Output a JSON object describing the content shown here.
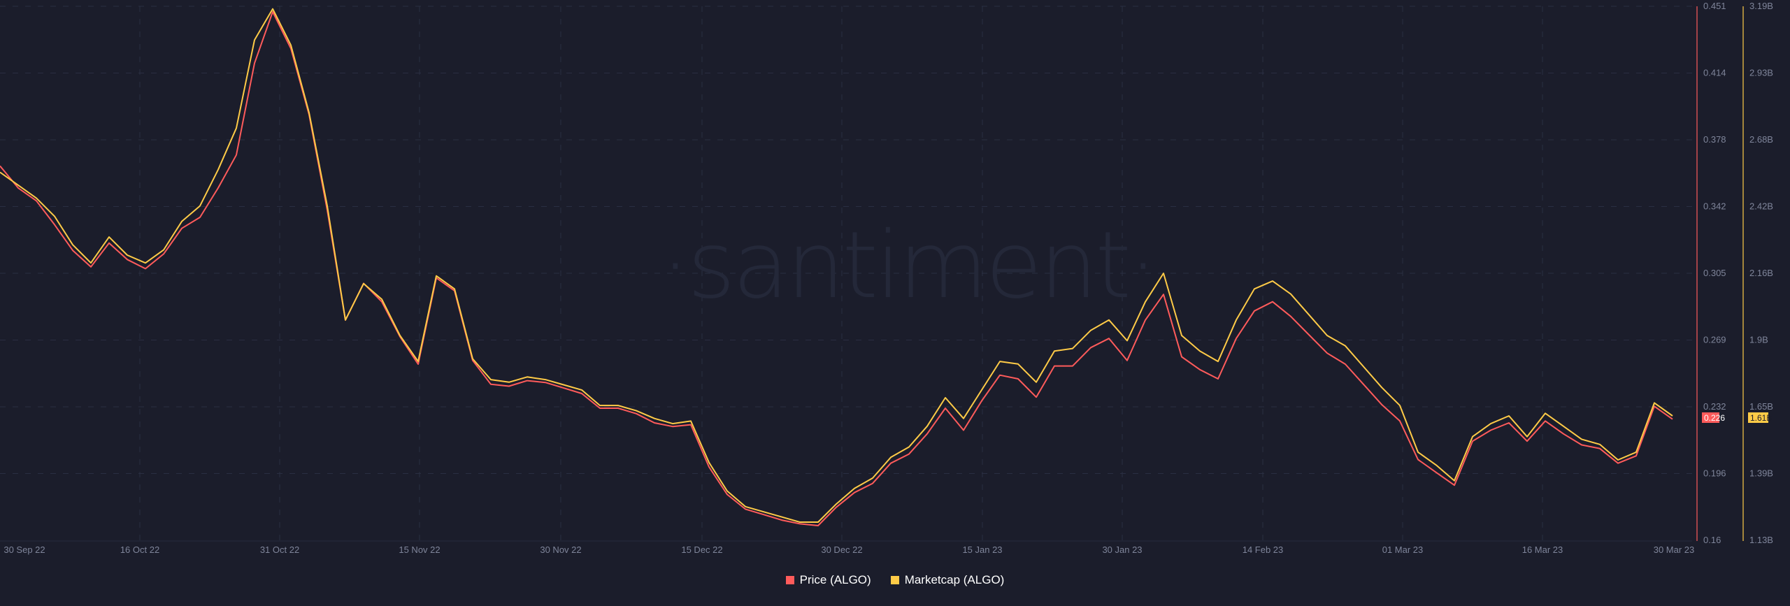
{
  "watermark": "·santiment·",
  "colors": {
    "background": "#1b1d2b",
    "grid": "#2a2e42",
    "price": "#ff5b5b",
    "marketcap": "#ffcb47",
    "axis_text": "#7f859a"
  },
  "legend": [
    {
      "label": "Price (ALGO)",
      "color": "#ff5b5b"
    },
    {
      "label": "Marketcap (ALGO)",
      "color": "#ffcb47"
    }
  ],
  "price_axis": {
    "ticks": [
      "0.451",
      "0.414",
      "0.378",
      "0.342",
      "0.305",
      "0.269",
      "0.232",
      "0.196",
      "0.16"
    ],
    "current_value": "0.226"
  },
  "marketcap_axis": {
    "ticks": [
      "3.19B",
      "2.93B",
      "2.68B",
      "2.42B",
      "2.16B",
      "1.9B",
      "1.65B",
      "1.39B",
      "1.13B"
    ],
    "current_value": "1.61B"
  },
  "x_axis": {
    "labels": [
      "30 Sep 22",
      "16 Oct 22",
      "31 Oct 22",
      "15 Nov 22",
      "30 Nov 22",
      "15 Dec 22",
      "30 Dec 22",
      "15 Jan 23",
      "30 Jan 23",
      "14 Feb 23",
      "01 Mar 23",
      "16 Mar 23",
      "30 Mar 23"
    ]
  },
  "chart_data": {
    "type": "line",
    "title": "",
    "xlabel": "",
    "ylabel": "",
    "x_range": [
      "30 Sep 22",
      "30 Mar 23"
    ],
    "grid": true,
    "legend_position": "bottom",
    "x": [
      "30 Sep 22",
      "16 Oct 22",
      "31 Oct 22",
      "15 Nov 22",
      "30 Nov 22",
      "15 Dec 22",
      "30 Dec 22",
      "15 Jan 23",
      "30 Jan 23",
      "14 Feb 23",
      "01 Mar 23",
      "16 Mar 23",
      "30 Mar 23"
    ],
    "y_left_label": "Price (ALGO)",
    "y_left_range": [
      0.16,
      0.451
    ],
    "y_right_label": "Marketcap (ALGO)",
    "y_right_range": [
      1.13,
      3.19
    ],
    "y_right_unit": "B",
    "series": [
      {
        "name": "Price (ALGO)",
        "axis": "left",
        "color": "#ff5b5b",
        "values": [
          0.364,
          0.352,
          0.345,
          0.332,
          0.318,
          0.309,
          0.322,
          0.313,
          0.308,
          0.316,
          0.33,
          0.336,
          0.352,
          0.37,
          0.42,
          0.448,
          0.428,
          0.392,
          0.34,
          0.28,
          0.3,
          0.29,
          0.271,
          0.256,
          0.303,
          0.296,
          0.258,
          0.245,
          0.244,
          0.247,
          0.246,
          0.243,
          0.24,
          0.232,
          0.232,
          0.229,
          0.224,
          0.222,
          0.223,
          0.2,
          0.185,
          0.177,
          0.174,
          0.171,
          0.169,
          0.168,
          0.178,
          0.186,
          0.191,
          0.202,
          0.207,
          0.218,
          0.232,
          0.22,
          0.236,
          0.25,
          0.248,
          0.238,
          0.255,
          0.255,
          0.265,
          0.27,
          0.258,
          0.28,
          0.294,
          0.26,
          0.253,
          0.248,
          0.27,
          0.285,
          0.29,
          0.282,
          0.272,
          0.262,
          0.256,
          0.245,
          0.234,
          0.225,
          0.204,
          0.197,
          0.19,
          0.214,
          0.22,
          0.224,
          0.214,
          0.225,
          0.218,
          0.212,
          0.21,
          0.202,
          0.206,
          0.233,
          0.226
        ],
        "approximate": true
      },
      {
        "name": "Marketcap (ALGO)",
        "axis": "right",
        "unit": "B",
        "color": "#ffcb47",
        "values": [
          2.55,
          2.5,
          2.45,
          2.38,
          2.27,
          2.2,
          2.3,
          2.23,
          2.2,
          2.25,
          2.36,
          2.42,
          2.56,
          2.72,
          3.06,
          3.18,
          3.04,
          2.78,
          2.42,
          1.98,
          2.12,
          2.06,
          1.92,
          1.82,
          2.15,
          2.1,
          1.83,
          1.75,
          1.74,
          1.76,
          1.75,
          1.73,
          1.71,
          1.65,
          1.65,
          1.63,
          1.6,
          1.58,
          1.59,
          1.43,
          1.32,
          1.26,
          1.24,
          1.22,
          1.2,
          1.2,
          1.27,
          1.33,
          1.37,
          1.45,
          1.49,
          1.57,
          1.68,
          1.6,
          1.71,
          1.82,
          1.81,
          1.74,
          1.86,
          1.87,
          1.94,
          1.98,
          1.9,
          2.05,
          2.16,
          1.92,
          1.86,
          1.82,
          1.98,
          2.1,
          2.13,
          2.08,
          2.0,
          1.92,
          1.88,
          1.8,
          1.72,
          1.65,
          1.47,
          1.42,
          1.36,
          1.53,
          1.58,
          1.61,
          1.53,
          1.62,
          1.57,
          1.52,
          1.5,
          1.44,
          1.47,
          1.66,
          1.61
        ],
        "approximate": true
      }
    ]
  }
}
